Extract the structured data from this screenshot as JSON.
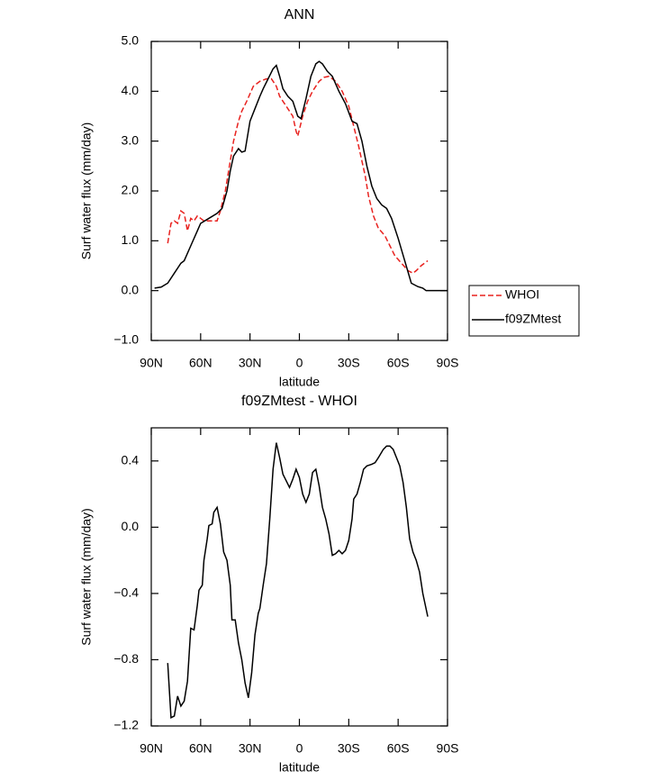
{
  "chart_data": [
    {
      "type": "line",
      "title": "ANN",
      "xlabel": "latitude",
      "ylabel": "Surf water flux (mm/day)",
      "xlim": [
        90,
        -90
      ],
      "xticks": [
        {
          "value": 90,
          "label": "90N"
        },
        {
          "value": 60,
          "label": "60N"
        },
        {
          "value": 30,
          "label": "30N"
        },
        0,
        {
          "value": -30,
          "label": "30S"
        },
        {
          "value": -60,
          "label": "60S"
        },
        {
          "value": -90,
          "label": "90S"
        }
      ],
      "ylim": [
        -1,
        5
      ],
      "yticks": [
        {
          "value": -1,
          "label": "−1.0"
        },
        {
          "value": 0,
          "label": "0.0"
        },
        {
          "value": 1,
          "label": "1.0"
        },
        {
          "value": 2,
          "label": "2.0"
        },
        {
          "value": 3,
          "label": "3.0"
        },
        {
          "value": 4,
          "label": "4.0"
        },
        {
          "value": 5,
          "label": "5.0"
        }
      ],
      "legend": "right",
      "series": [
        {
          "name": "WHOI",
          "color": "#e8221f",
          "dash": true,
          "x": [
            80,
            78,
            76,
            74,
            72,
            70,
            68,
            66,
            64,
            62,
            60,
            58,
            55,
            50,
            48,
            45,
            42,
            40,
            37,
            35,
            32,
            28,
            24,
            20,
            17,
            14,
            12,
            10,
            7,
            4,
            2,
            1,
            -2,
            -5,
            -8,
            -12,
            -15,
            -18,
            -22,
            -26,
            -30,
            -33,
            -36,
            -40,
            -42,
            -45,
            -48,
            -52,
            -55,
            -58,
            -62,
            -66,
            -69,
            -71,
            -74,
            -78
          ],
          "values": [
            0.95,
            1.35,
            1.4,
            1.35,
            1.6,
            1.55,
            1.2,
            1.45,
            1.4,
            1.5,
            1.45,
            1.4,
            1.4,
            1.4,
            1.6,
            2.0,
            2.6,
            3.0,
            3.4,
            3.6,
            3.8,
            4.1,
            4.2,
            4.25,
            4.25,
            4.1,
            3.9,
            3.8,
            3.65,
            3.5,
            3.2,
            3.1,
            3.5,
            3.8,
            4.0,
            4.2,
            4.28,
            4.3,
            4.2,
            4.0,
            3.7,
            3.3,
            2.9,
            2.3,
            1.9,
            1.5,
            1.25,
            1.1,
            0.9,
            0.7,
            0.55,
            0.4,
            0.35,
            0.4,
            0.5,
            0.6
          ]
        },
        {
          "name": "f09ZMtest",
          "color": "#000000",
          "dash": false,
          "x": [
            88,
            84,
            80,
            76,
            72,
            70,
            66,
            62,
            60,
            55,
            50,
            47,
            44,
            42,
            40,
            37,
            35,
            33,
            30,
            27,
            24,
            22,
            19,
            16,
            14,
            12,
            10,
            7,
            4,
            1,
            -1,
            -4,
            -7,
            -10,
            -12,
            -14,
            -17,
            -20,
            -24,
            -28,
            -32,
            -35,
            -38,
            -41,
            -44,
            -47,
            -50,
            -53,
            -56,
            -60,
            -64,
            -68,
            -72,
            -75,
            -77,
            -90
          ],
          "values": [
            0.05,
            0.07,
            0.15,
            0.35,
            0.55,
            0.6,
            0.9,
            1.2,
            1.35,
            1.45,
            1.55,
            1.65,
            2.0,
            2.4,
            2.7,
            2.85,
            2.78,
            2.8,
            3.4,
            3.65,
            3.9,
            4.05,
            4.25,
            4.45,
            4.52,
            4.3,
            4.05,
            3.9,
            3.8,
            3.5,
            3.45,
            3.85,
            4.3,
            4.55,
            4.6,
            4.55,
            4.4,
            4.3,
            4.0,
            3.75,
            3.4,
            3.35,
            3.0,
            2.5,
            2.1,
            1.85,
            1.72,
            1.65,
            1.45,
            1.05,
            0.6,
            0.15,
            0.08,
            0.05,
            0.0,
            0.0
          ]
        }
      ]
    },
    {
      "type": "line",
      "title": "f09ZMtest - WHOI",
      "xlabel": "latitude",
      "ylabel": "Surf water flux (mm/day)",
      "xlim": [
        90,
        -90
      ],
      "xticks": [
        {
          "value": 90,
          "label": "90N"
        },
        {
          "value": 60,
          "label": "60N"
        },
        {
          "value": 30,
          "label": "30N"
        },
        0,
        {
          "value": -30,
          "label": "30S"
        },
        {
          "value": -60,
          "label": "60S"
        },
        {
          "value": -90,
          "label": "90S"
        }
      ],
      "ylim": [
        -1.2,
        0.6
      ],
      "yticks": [
        {
          "value": -1.2,
          "label": "−1.2"
        },
        {
          "value": -0.8,
          "label": "−0.8"
        },
        {
          "value": -0.4,
          "label": "−0.4"
        },
        {
          "value": 0,
          "label": "0.0"
        },
        0.4
      ],
      "series": [
        {
          "color": "#000000",
          "dash": false,
          "x": [
            80,
            78,
            76,
            74,
            72,
            70,
            68,
            66,
            64,
            62,
            61,
            59,
            58,
            56,
            55,
            53,
            52,
            50,
            48,
            46,
            44,
            42,
            41,
            39,
            37,
            35,
            33,
            31,
            29,
            27,
            25,
            24,
            22,
            20,
            18,
            16,
            14,
            12,
            10,
            8,
            6,
            4,
            2,
            0,
            -2,
            -4,
            -6,
            -8,
            -10,
            -12,
            -14,
            -16,
            -18,
            -20,
            -22,
            -24,
            -26,
            -28,
            -30,
            -32,
            -33,
            -35,
            -37,
            -39,
            -41,
            -44,
            -46,
            -48,
            -51,
            -53,
            -55,
            -57,
            -59,
            -61,
            -63,
            -65,
            -67,
            -69,
            -71,
            -73,
            -75,
            -78
          ],
          "values": [
            -0.82,
            -1.15,
            -1.14,
            -1.02,
            -1.08,
            -1.05,
            -0.93,
            -0.61,
            -0.62,
            -0.47,
            -0.38,
            -0.35,
            -0.2,
            -0.07,
            0.01,
            0.02,
            0.09,
            0.12,
            0.02,
            -0.15,
            -0.2,
            -0.35,
            -0.56,
            -0.56,
            -0.7,
            -0.8,
            -0.94,
            -1.03,
            -0.88,
            -0.65,
            -0.52,
            -0.49,
            -0.35,
            -0.22,
            0.05,
            0.35,
            0.51,
            0.42,
            0.32,
            0.28,
            0.24,
            0.29,
            0.35,
            0.3,
            0.2,
            0.15,
            0.2,
            0.33,
            0.35,
            0.25,
            0.12,
            0.05,
            -0.04,
            -0.17,
            -0.16,
            -0.14,
            -0.16,
            -0.14,
            -0.08,
            0.05,
            0.17,
            0.2,
            0.27,
            0.35,
            0.37,
            0.38,
            0.39,
            0.42,
            0.47,
            0.49,
            0.49,
            0.47,
            0.42,
            0.37,
            0.27,
            0.12,
            -0.07,
            -0.15,
            -0.2,
            -0.27,
            -0.4,
            -0.54
          ]
        }
      ]
    }
  ]
}
